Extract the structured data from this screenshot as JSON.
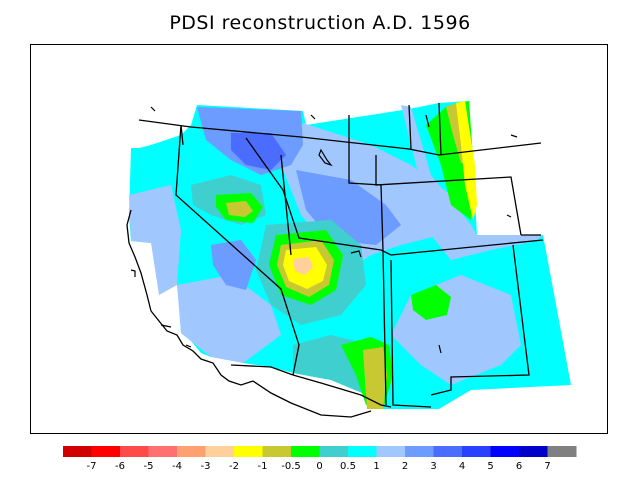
{
  "title": "PDSI reconstruction A.D. 1596",
  "legend": {
    "swatches": [
      {
        "color": "#d00000"
      },
      {
        "color": "#ff0000"
      },
      {
        "color": "#ff4a4a"
      },
      {
        "color": "#ff7070"
      },
      {
        "color": "#ffa070"
      },
      {
        "color": "#ffd09c"
      },
      {
        "color": "#ffff00"
      },
      {
        "color": "#c8c832"
      },
      {
        "color": "#00ff00"
      },
      {
        "color": "#3fcfcf"
      },
      {
        "color": "#00ffff"
      },
      {
        "color": "#a0c8ff"
      },
      {
        "color": "#6c9cff"
      },
      {
        "color": "#4a6cff"
      },
      {
        "color": "#2a40ff"
      },
      {
        "color": "#0000ff"
      },
      {
        "color": "#0000c8"
      },
      {
        "color": "#808080"
      }
    ],
    "tick_labels": [
      "-7",
      "-6",
      "-5",
      "-4",
      "-3",
      "-2",
      "-1",
      "-0.5",
      "0",
      "0.5",
      "1",
      "2",
      "3",
      "4",
      "5",
      "6",
      "7"
    ]
  },
  "palette": {
    "base": "#00ffff",
    "light_blue": "#a0c8ff",
    "mid_blue": "#6c9cff",
    "blue": "#4a6cff",
    "teal": "#3fcfcf",
    "green": "#00ff00",
    "olive": "#c8c832",
    "yellow": "#ffff00",
    "peach": "#ffd09c"
  }
}
